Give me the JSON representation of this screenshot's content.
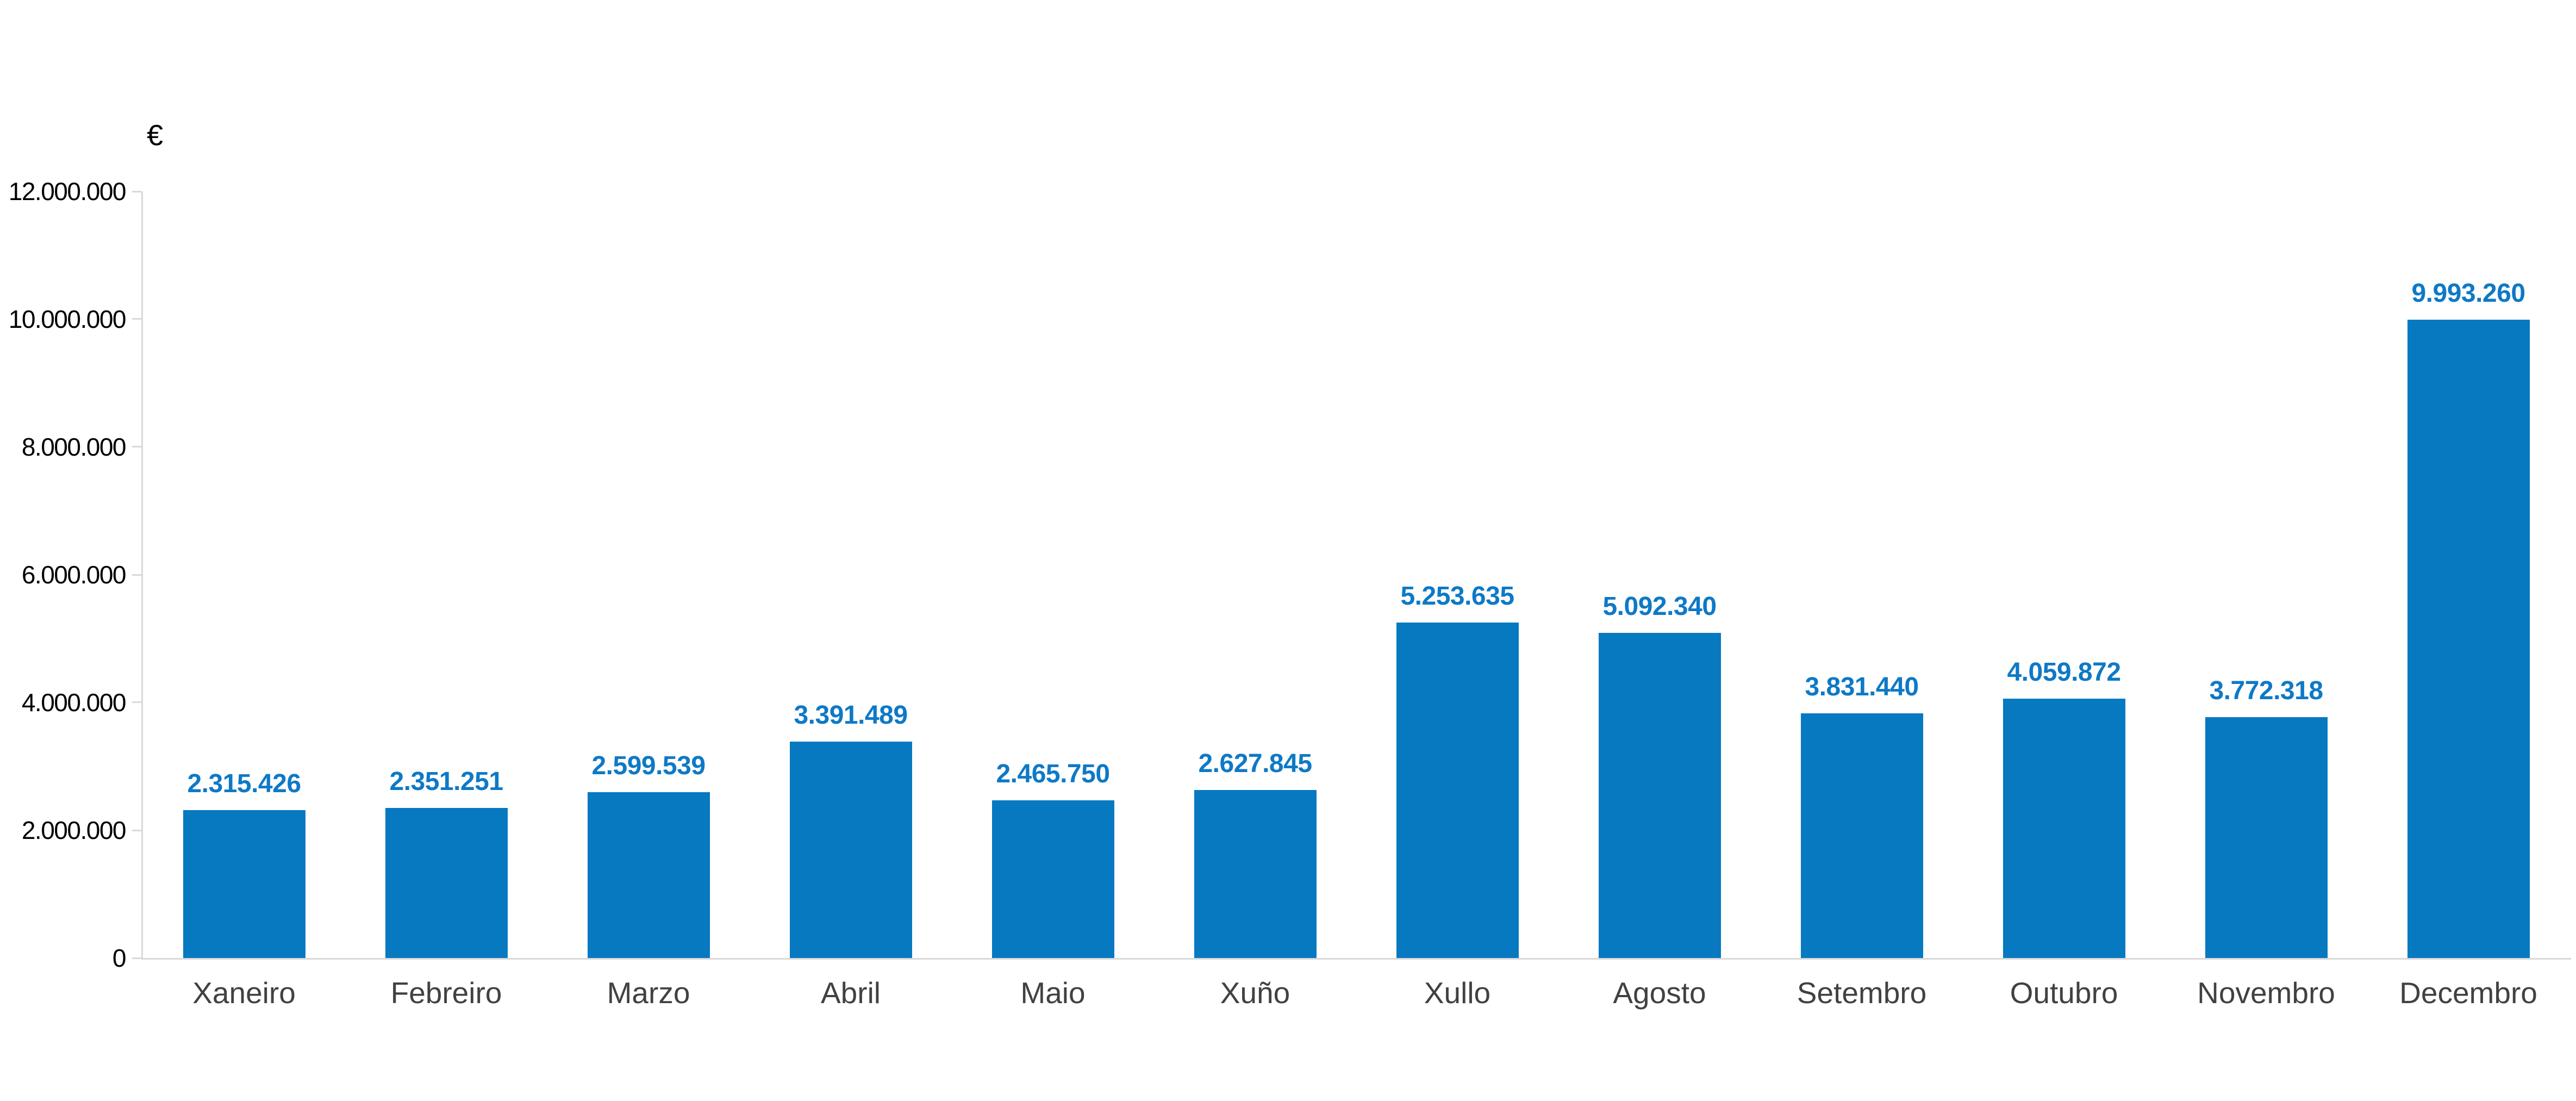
{
  "chart_data": {
    "type": "bar",
    "title": "",
    "y_axis_unit_label": "€",
    "categories": [
      "Xaneiro",
      "Febreiro",
      "Marzo",
      "Abril",
      "Maio",
      "Xuño",
      "Xullo",
      "Agosto",
      "Setembro",
      "Outubro",
      "Novembro",
      "Decembro"
    ],
    "values": [
      2315426,
      2351251,
      2599539,
      3391489,
      2465750,
      2627845,
      5253635,
      5092340,
      3831440,
      4059872,
      3772318,
      9993260
    ],
    "value_labels": [
      "2.315.426",
      "2.351.251",
      "2.599.539",
      "3.391.489",
      "2.465.750",
      "2.627.845",
      "5.253.635",
      "5.092.340",
      "3.831.440",
      "4.059.872",
      "3.772.318",
      "9.993.260"
    ],
    "y_ticks": [
      {
        "value": 12000000,
        "label": "12.000.000"
      },
      {
        "value": 10000000,
        "label": "10.000.000"
      },
      {
        "value": 8000000,
        "label": "8.000.000"
      },
      {
        "value": 6000000,
        "label": "6.000.000"
      },
      {
        "value": 4000000,
        "label": "4.000.000"
      },
      {
        "value": 2000000,
        "label": "2.000.000"
      },
      {
        "value": 0,
        "label": "0"
      }
    ],
    "ylim": [
      0,
      12000000
    ],
    "grid": false,
    "legend": false,
    "colors": {
      "bar": "#0679c1",
      "value_label": "#0e79c6",
      "category_label": "#414141",
      "tick_label": "#000000",
      "axis": "#d9d9d9",
      "background": "#ffffff"
    }
  }
}
